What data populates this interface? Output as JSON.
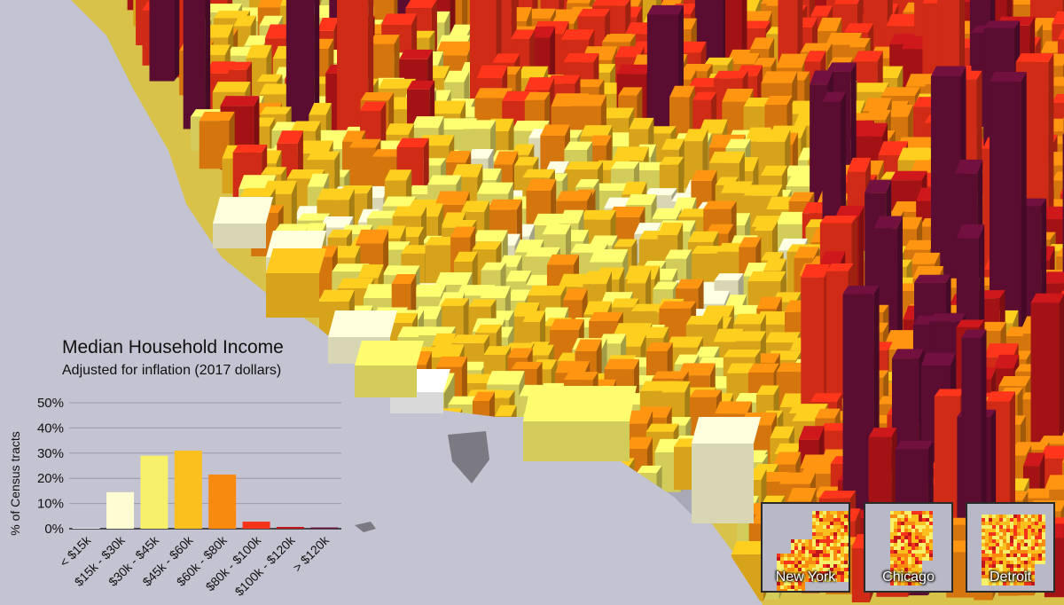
{
  "legend": {
    "title": "Median Household Income",
    "subtitle": "Adjusted for inflation (2017 dollars)"
  },
  "chart_data": {
    "type": "bar",
    "ylabel": "% of Census tracts",
    "xlabel": "",
    "ylim": [
      0,
      50
    ],
    "yticks": [
      "0%",
      "10%",
      "20%",
      "30%",
      "40%",
      "50%"
    ],
    "ytick_values": [
      0,
      10,
      20,
      30,
      40,
      50
    ],
    "grid": true,
    "categories": [
      "< $15k",
      "$15k - $30k",
      "$30k - $45k",
      "$45k - $60k",
      "$60k - $80k",
      "$80k - $100k",
      "$100k - $120k",
      "> $120k"
    ],
    "values": [
      0.3,
      14.5,
      29,
      31,
      21.5,
      2.8,
      0.7,
      0.5
    ],
    "colors": [
      "#ffffff",
      "#fefcd2",
      "#f7f06a",
      "#fcc01e",
      "#f98a10",
      "#f5321a",
      "#c0161a",
      "#6a0f3a"
    ]
  },
  "cities": [
    {
      "label": "New York"
    },
    {
      "label": "Chicago"
    },
    {
      "label": "Detroit"
    }
  ]
}
